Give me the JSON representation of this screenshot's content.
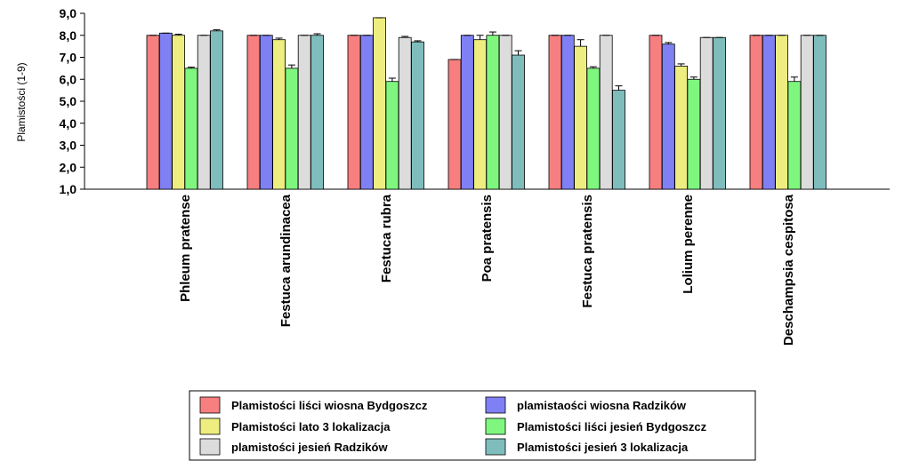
{
  "chart_data": {
    "type": "bar",
    "ylabel": "Plamistości (1-9)",
    "ylim": [
      1.0,
      9.0
    ],
    "yticks": [
      "1,0",
      "2,0",
      "3,0",
      "4,0",
      "5,0",
      "6,0",
      "7,0",
      "8,0",
      "9,0"
    ],
    "categories": [
      "Phleum pratense",
      "Festuca arundinacea",
      "Festuca rubra",
      "Poa pratensis",
      "Festuca pratensis",
      "Lolium perenne",
      "Deschampsia cespitosa"
    ],
    "series": [
      {
        "name": "Plamistości liści wiosna Bydgoszcz",
        "color": "#f77f7f",
        "values": [
          8.0,
          8.0,
          8.0,
          6.9,
          8.0,
          8.0,
          8.0
        ],
        "errors": [
          0,
          0,
          0,
          0,
          0,
          0,
          0
        ]
      },
      {
        "name": "plamistaości wiosna Radzików",
        "color": "#8080f5",
        "values": [
          8.1,
          8.0,
          8.0,
          8.0,
          8.0,
          7.6,
          8.0
        ],
        "errors": [
          0,
          0,
          0,
          0,
          0,
          0.07,
          0
        ]
      },
      {
        "name": "Plamistości lato 3 lokalizacja",
        "color": "#eded80",
        "values": [
          8.0,
          7.8,
          8.8,
          7.8,
          7.5,
          6.6,
          8.0
        ],
        "errors": [
          0.05,
          0.07,
          0,
          0.2,
          0.3,
          0.1,
          0
        ]
      },
      {
        "name": "Plamistości liści jesień Bydgoszcz",
        "color": "#7ff77f",
        "values": [
          6.5,
          6.5,
          5.9,
          8.0,
          6.5,
          6.0,
          5.9
        ],
        "errors": [
          0.05,
          0.15,
          0.15,
          0.15,
          0.07,
          0.1,
          0.2
        ]
      },
      {
        "name": "plamistości jesień Radzików",
        "color": "#dcdcdc",
        "values": [
          8.0,
          8.0,
          7.9,
          8.0,
          8.0,
          7.9,
          8.0
        ],
        "errors": [
          0,
          0,
          0.05,
          0,
          0,
          0,
          0
        ]
      },
      {
        "name": "Plamistości jesień 3 lokalizacja",
        "color": "#7fbdbd",
        "values": [
          8.2,
          8.0,
          7.7,
          7.1,
          5.5,
          7.9,
          8.0
        ],
        "errors": [
          0.05,
          0.07,
          0.05,
          0.2,
          0.2,
          0,
          0
        ]
      }
    ],
    "legend": {
      "placement": "bottom-center",
      "order": [
        0,
        1,
        2,
        3,
        4,
        5
      ]
    },
    "grid": false
  }
}
